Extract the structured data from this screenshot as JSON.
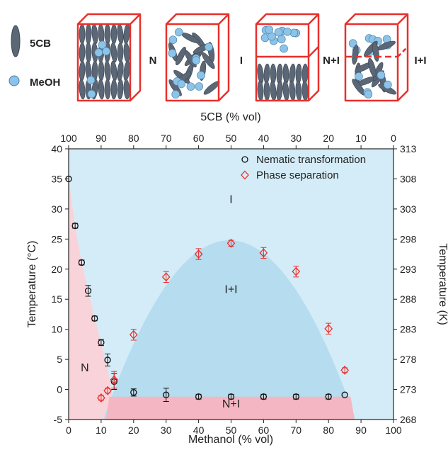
{
  "schematic": {
    "legend": [
      {
        "label": "5CB",
        "icon": "rod-molecule-icon"
      },
      {
        "label": "MeOH",
        "icon": "sphere-molecule-icon"
      }
    ],
    "boxes": [
      {
        "label": "N"
      },
      {
        "label": "I"
      },
      {
        "label": "N+I"
      },
      {
        "label": "I+I"
      }
    ],
    "colors": {
      "box": "#e8302c",
      "rod": "#5b6776",
      "sphere": "#8cc3e8"
    }
  },
  "chart_data": {
    "type": "scatter",
    "xlabel": "Methanol (% vol)",
    "xlim": [
      0,
      100
    ],
    "xticks": [
      0,
      10,
      20,
      30,
      40,
      50,
      60,
      70,
      80,
      90,
      100
    ],
    "x2label": "5CB (% vol)",
    "x2ticks": [
      100,
      90,
      80,
      70,
      60,
      50,
      40,
      30,
      20,
      10,
      0
    ],
    "ylabel": "Temperature (°C)",
    "ylim": [
      -5,
      40
    ],
    "yticks": [
      -5,
      0,
      5,
      10,
      15,
      20,
      25,
      30,
      35,
      40
    ],
    "y2label": "Temperature (K)",
    "y2ticks": [
      268,
      273,
      278,
      283,
      288,
      293,
      298,
      303,
      308,
      313
    ],
    "legend_position": "top-right",
    "series": [
      {
        "name": "Nematic transformation",
        "marker": "circle",
        "color": "#111111",
        "points": [
          {
            "x": 0,
            "y": 35,
            "err": 0
          },
          {
            "x": 2,
            "y": 27.2,
            "err": 0.4
          },
          {
            "x": 4,
            "y": 21.1,
            "err": 0.4
          },
          {
            "x": 6,
            "y": 16.4,
            "err": 0.9
          },
          {
            "x": 8,
            "y": 11.8,
            "err": 0.4
          },
          {
            "x": 10,
            "y": 7.8,
            "err": 0.5
          },
          {
            "x": 12,
            "y": 4.9,
            "err": 1.0
          },
          {
            "x": 14,
            "y": 1.3,
            "err": 1.3
          },
          {
            "x": 20,
            "y": -0.5,
            "err": 0.6
          },
          {
            "x": 30,
            "y": -0.9,
            "err": 1.1
          },
          {
            "x": 40,
            "y": -1.2,
            "err": 0.4
          },
          {
            "x": 50,
            "y": -1.2,
            "err": 0.4
          },
          {
            "x": 60,
            "y": -1.2,
            "err": 0.4
          },
          {
            "x": 70,
            "y": -1.2,
            "err": 0.4
          },
          {
            "x": 80,
            "y": -1.2,
            "err": 0.4
          },
          {
            "x": 85,
            "y": -0.9,
            "err": 0
          }
        ]
      },
      {
        "name": "Phase separation",
        "marker": "diamond",
        "color": "#e8302c",
        "points": [
          {
            "x": 10,
            "y": -1.4,
            "err": 0.4
          },
          {
            "x": 12,
            "y": -0.2,
            "err": 0.4
          },
          {
            "x": 14,
            "y": 1.6,
            "err": 1.4
          },
          {
            "x": 20,
            "y": 9.1,
            "err": 0.9
          },
          {
            "x": 30,
            "y": 18.7,
            "err": 0.9
          },
          {
            "x": 40,
            "y": 22.5,
            "err": 0.9
          },
          {
            "x": 50,
            "y": 24.3,
            "err": 0.5
          },
          {
            "x": 60,
            "y": 22.7,
            "err": 0.9
          },
          {
            "x": 70,
            "y": 19.6,
            "err": 0.9
          },
          {
            "x": 80,
            "y": 10.1,
            "err": 0.9
          },
          {
            "x": 85,
            "y": 3.2,
            "err": 0.4
          }
        ]
      }
    ],
    "regions": [
      {
        "label": "I",
        "at": {
          "x": 50,
          "y": 31
        },
        "color": "#d4ecf7"
      },
      {
        "label": "I+I",
        "at": {
          "x": 50,
          "y": 16
        },
        "color": "#b5dcef"
      },
      {
        "label": "N",
        "at": {
          "x": 5,
          "y": 3
        },
        "color": "#f9d3da"
      },
      {
        "label": "N+I",
        "at": {
          "x": 50,
          "y": -3
        },
        "color": "#f4b6c2"
      }
    ]
  }
}
